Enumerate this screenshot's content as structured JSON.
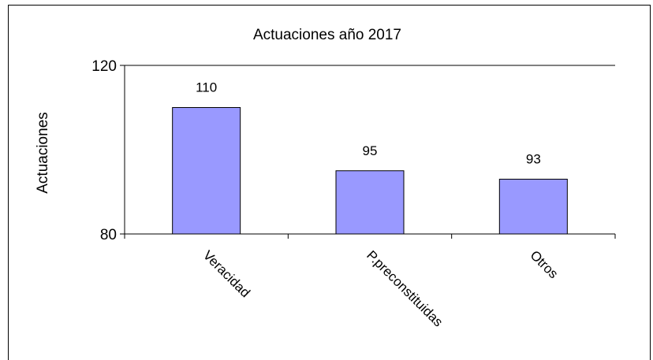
{
  "chart_data": {
    "type": "bar",
    "title": "Actuaciones año 2017",
    "xlabel": "",
    "ylabel": "Actuaciones",
    "categories": [
      "Veracidad",
      "P.preconstituidas",
      "Otros"
    ],
    "values": [
      110,
      95,
      93
    ],
    "data_labels": [
      "110",
      "95",
      "93"
    ],
    "ylim": [
      80,
      120
    ],
    "y_ticks": [
      "120",
      "80"
    ],
    "grid": false,
    "legend": "none",
    "colors": {
      "bar_fill": "#9999ff",
      "bar_stroke": "#000000"
    }
  }
}
